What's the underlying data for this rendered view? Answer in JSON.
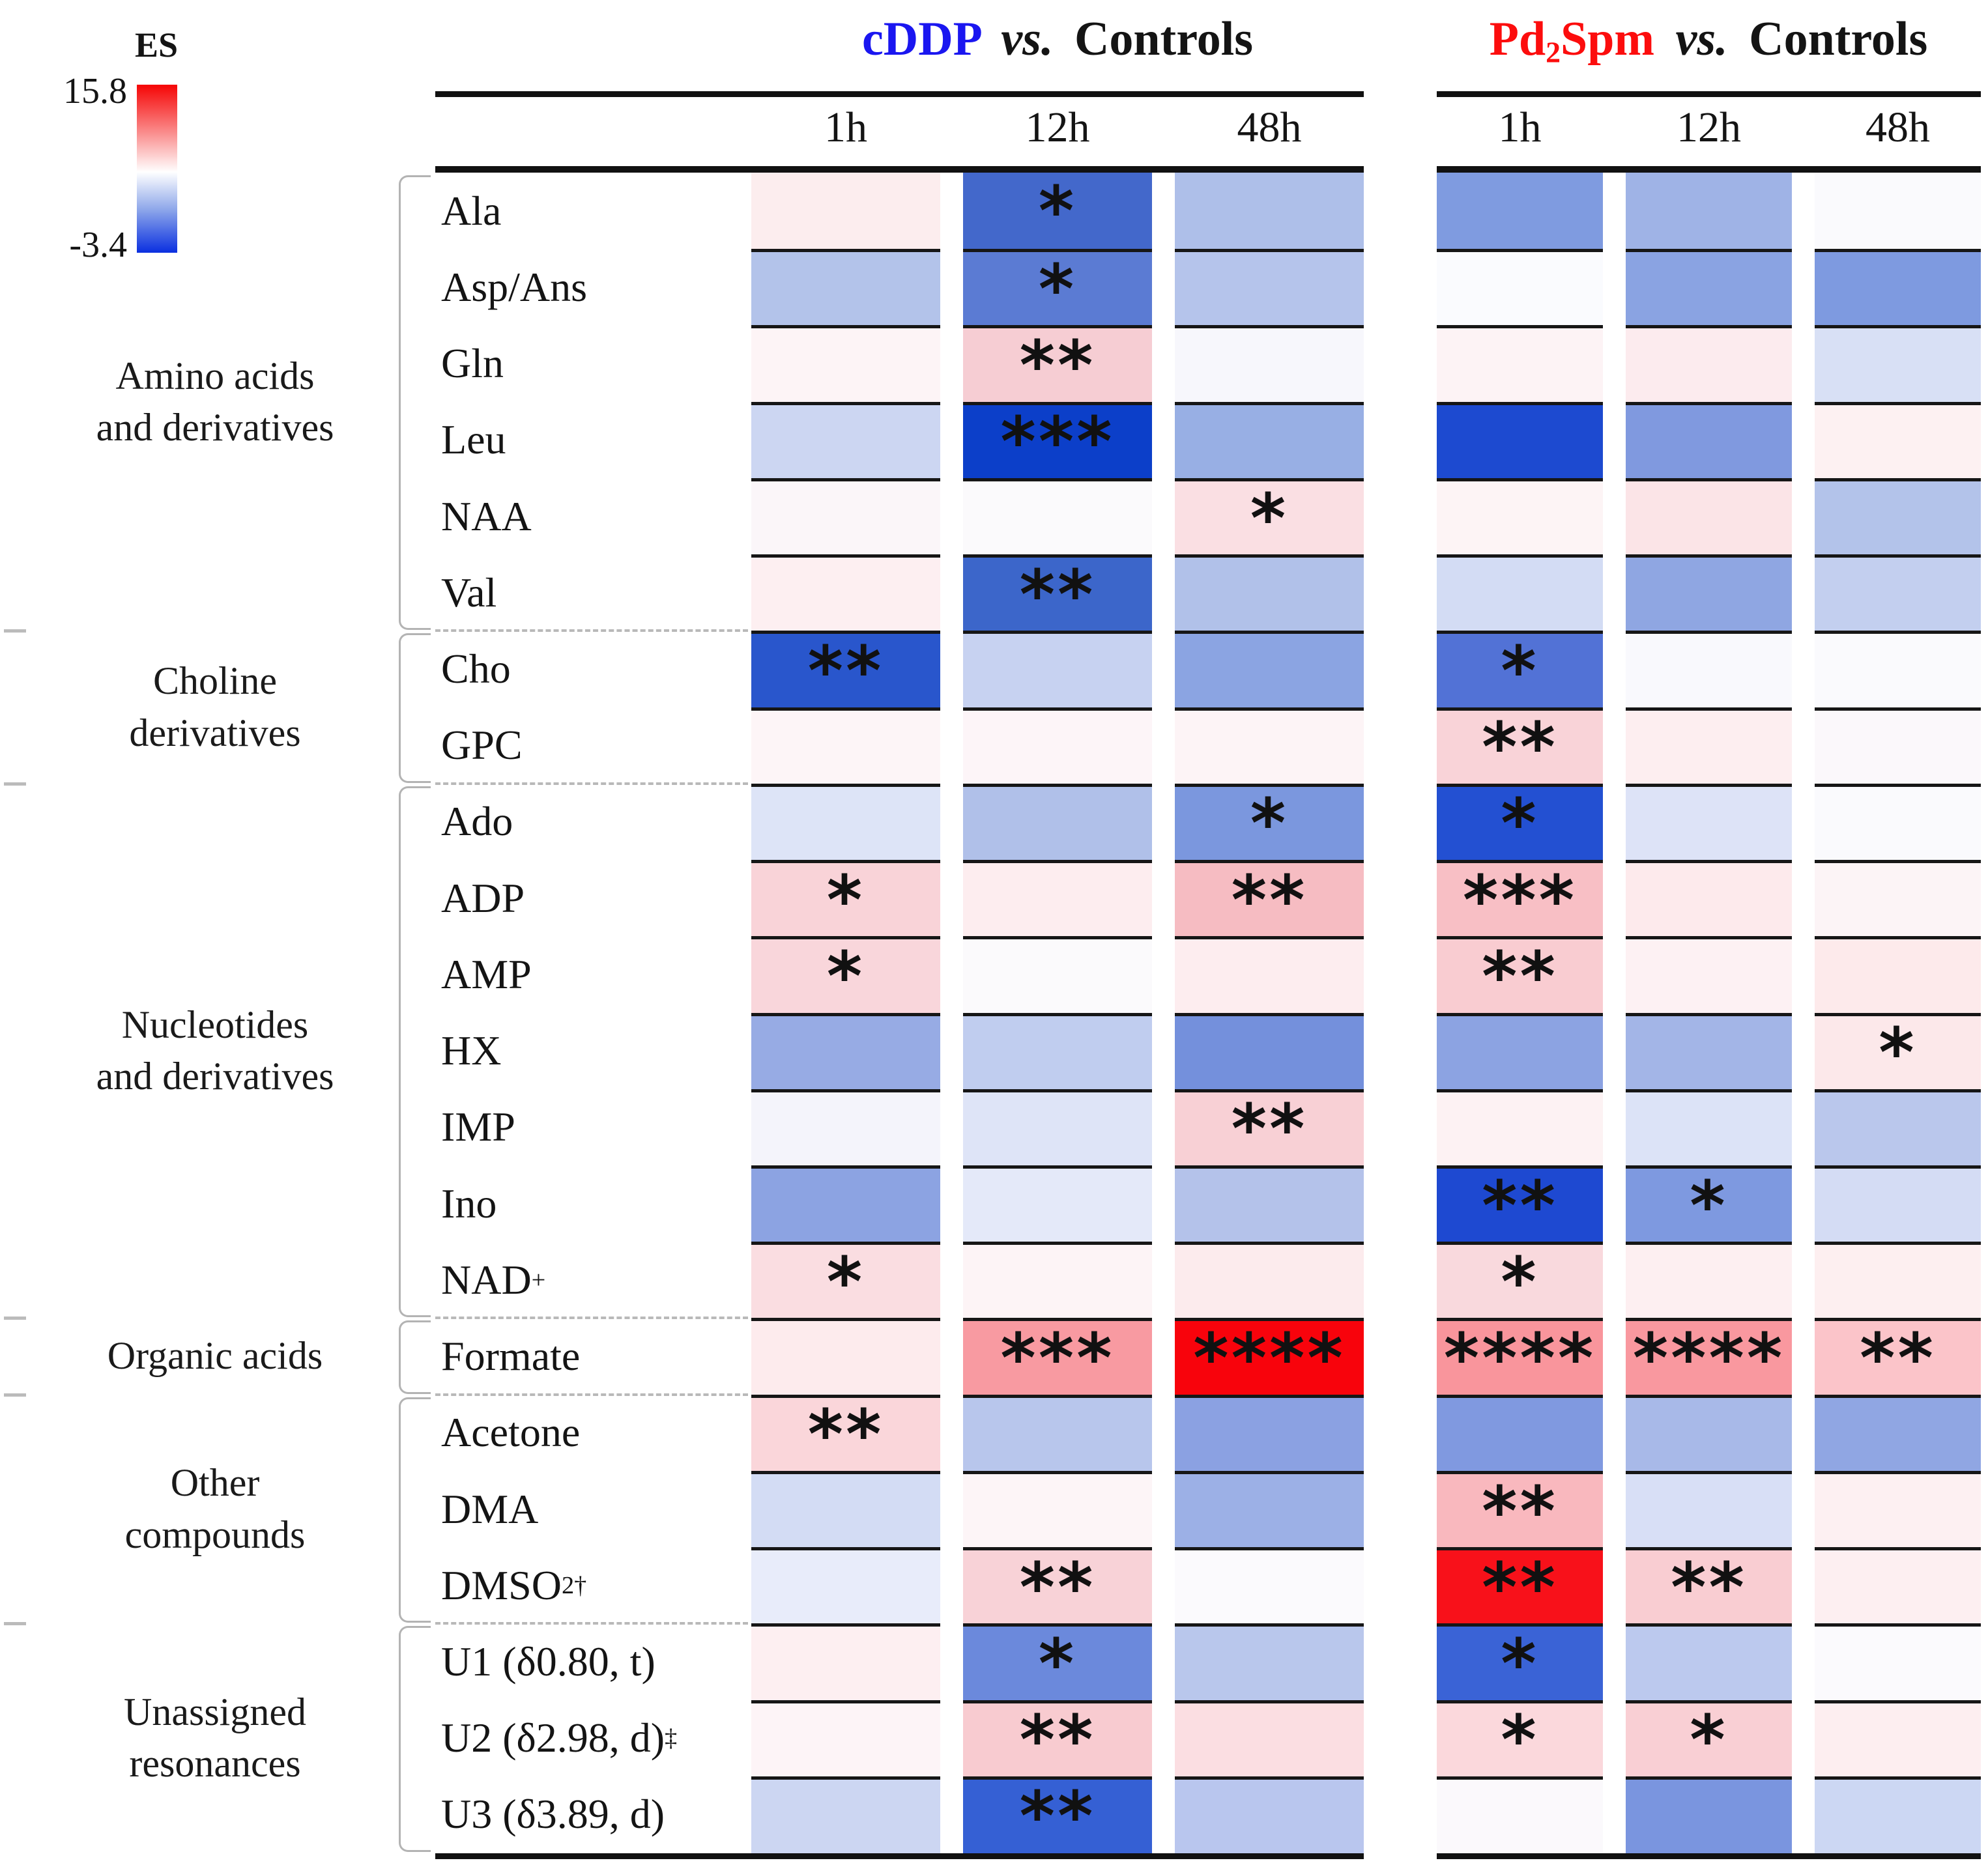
{
  "legend": {
    "title": "ES",
    "max_label": "15.8",
    "min_label": "-3.4",
    "gradient": [
      "#f50505",
      "#fa8a8a",
      "#ffffff",
      "#8fa8ea",
      "#0a2fe0"
    ]
  },
  "header": {
    "groups": [
      {
        "drug_segments": [
          {
            "t": "cDDP"
          }
        ],
        "drug_color": "#1a16f0",
        "vs_label": "vs.",
        "controls_label": "Controls",
        "timepoints": [
          "1h",
          "12h",
          "48h"
        ]
      },
      {
        "drug_segments": [
          {
            "t": "Pd"
          },
          {
            "sub": "2"
          },
          {
            "t": "Spm"
          }
        ],
        "drug_color": "#fc0d0d",
        "vs_label": "vs.",
        "controls_label": "Controls",
        "timepoints": [
          "1h",
          "12h",
          "48h"
        ]
      }
    ]
  },
  "categories": [
    {
      "label": "Amino acids\nand derivatives",
      "row_start": 0,
      "row_end": 5
    },
    {
      "label": "Choline\nderivatives",
      "row_start": 6,
      "row_end": 7
    },
    {
      "label": "Nucleotides\nand derivatives",
      "row_start": 8,
      "row_end": 14
    },
    {
      "label": "Organic acids",
      "row_start": 15,
      "row_end": 15
    },
    {
      "label": "Other\ncompounds",
      "row_start": 16,
      "row_end": 18
    },
    {
      "label": "Unassigned\nresonances",
      "row_start": 19,
      "row_end": 21
    }
  ],
  "chart_data": {
    "type": "heatmap",
    "legend": {
      "label": "ES",
      "max": 15.8,
      "min": -3.4,
      "colormap": "blue-white-red"
    },
    "column_groups": [
      "cDDP vs. Controls",
      "Pd2Spm vs. Controls"
    ],
    "columns": [
      "cDDP 1h",
      "cDDP 12h",
      "cDDP 48h",
      "Pd2Spm 1h",
      "Pd2Spm 12h",
      "Pd2Spm 48h"
    ],
    "rows": [
      {
        "metabolite": "Ala",
        "category": "Amino acids and derivatives",
        "label_segments": [
          {
            "t": "Ala"
          }
        ],
        "cell_colors": [
          "#fcedee",
          "#4368cb",
          "#aebfe9",
          "#7f9be0",
          "#9fb3e6",
          "#fafafd"
        ],
        "significance": [
          "",
          "*",
          "",
          "",
          "",
          ""
        ]
      },
      {
        "metabolite": "Asp/Ans",
        "category": "Amino acids and derivatives",
        "label_segments": [
          {
            "t": "Asp/Ans"
          }
        ],
        "cell_colors": [
          "#b3c3ea",
          "#5b7bd3",
          "#b5c4eb",
          "#fafbfe",
          "#8aa3e2",
          "#7e9ae0"
        ],
        "significance": [
          "",
          "*",
          "",
          "",
          "",
          ""
        ]
      },
      {
        "metabolite": "Gln",
        "category": "Amino acids and derivatives",
        "label_segments": [
          {
            "t": "Gln"
          }
        ],
        "cell_colors": [
          "#fdf4f6",
          "#f6cdd3",
          "#f7f7fc",
          "#fdf3f5",
          "#fcebee",
          "#d8e0f5"
        ],
        "significance": [
          "",
          "**",
          "",
          "",
          "",
          ""
        ]
      },
      {
        "metabolite": "Leu",
        "category": "Amino acids and derivatives",
        "label_segments": [
          {
            "t": "Leu"
          }
        ],
        "cell_colors": [
          "#ccd6f2",
          "#0c3fc9",
          "#98afe4",
          "#1d4ad0",
          "#8099df",
          "#fdf1f2"
        ],
        "significance": [
          "",
          "***",
          "",
          "",
          "",
          ""
        ]
      },
      {
        "metabolite": "NAA",
        "category": "Amino acids and derivatives",
        "label_segments": [
          {
            "t": "NAA"
          }
        ],
        "cell_colors": [
          "#fbf6f9",
          "#fbfafc",
          "#fadfe3",
          "#fdf4f5",
          "#fbe4e7",
          "#b3c3ea"
        ],
        "significance": [
          "",
          "",
          "*",
          "",
          "",
          ""
        ]
      },
      {
        "metabolite": "Val",
        "category": "Amino acids and derivatives",
        "label_segments": [
          {
            "t": "Val"
          }
        ],
        "cell_colors": [
          "#fdeff1",
          "#3c66ca",
          "#b1c1e9",
          "#d3dcf4",
          "#8fa6e2",
          "#c3cfef"
        ],
        "significance": [
          "",
          "**",
          "",
          "",
          "",
          ""
        ]
      },
      {
        "metabolite": "Cho",
        "category": "Choline derivatives",
        "label_segments": [
          {
            "t": "Cho"
          }
        ],
        "cell_colors": [
          "#2956cc",
          "#c7d2f1",
          "#8ba4e2",
          "#5272d6",
          "#f9f9fd",
          "#fafafd"
        ],
        "significance": [
          "**",
          "",
          "",
          "*",
          "",
          ""
        ]
      },
      {
        "metabolite": "GPC",
        "category": "Choline derivatives",
        "label_segments": [
          {
            "t": "GPC"
          }
        ],
        "cell_colors": [
          "#fdf5f7",
          "#fdf5f8",
          "#fdf4f6",
          "#f9d3d8",
          "#fdeef0",
          "#fbf8fb"
        ],
        "significance": [
          "",
          "",
          "",
          "**",
          "",
          ""
        ]
      },
      {
        "metabolite": "Ado",
        "category": "Nucleotides and derivatives",
        "label_segments": [
          {
            "t": "Ado"
          }
        ],
        "cell_colors": [
          "#dde4f7",
          "#b0c0e9",
          "#7b97de",
          "#2350d2",
          "#dde3f7",
          "#fafafd"
        ],
        "significance": [
          "",
          "",
          "*",
          "*",
          "",
          ""
        ]
      },
      {
        "metabolite": "ADP",
        "category": "Nucleotides and derivatives",
        "label_segments": [
          {
            "t": "ADP"
          }
        ],
        "cell_colors": [
          "#f9d3d8",
          "#fdedef",
          "#f6bcc2",
          "#f8bfc5",
          "#fdeaec",
          "#fcf4f6"
        ],
        "significance": [
          "*",
          "",
          "**",
          "***",
          "",
          ""
        ]
      },
      {
        "metabolite": "AMP",
        "category": "Nucleotides and derivatives",
        "label_segments": [
          {
            "t": "AMP"
          }
        ],
        "cell_colors": [
          "#f9d6db",
          "#fbfafc",
          "#fdedef",
          "#f9ccd1",
          "#fdf1f3",
          "#fdeaeb"
        ],
        "significance": [
          "*",
          "",
          "",
          "**",
          "",
          ""
        ]
      },
      {
        "metabolite": "HX",
        "category": "Nucleotides and derivatives",
        "label_segments": [
          {
            "t": "HX"
          }
        ],
        "cell_colors": [
          "#97abe4",
          "#c0cdef",
          "#7490dc",
          "#8ca3e2",
          "#a3b5e7",
          "#fce8ea"
        ],
        "significance": [
          "",
          "",
          "",
          "",
          "",
          "*"
        ]
      },
      {
        "metabolite": "IMP",
        "category": "Nucleotides and derivatives",
        "label_segments": [
          {
            "t": "IMP"
          }
        ],
        "cell_colors": [
          "#f4f4fb",
          "#dee4f7",
          "#f8d0d5",
          "#fdf2f3",
          "#dce3f7",
          "#bac7ec"
        ],
        "significance": [
          "",
          "",
          "**",
          "",
          "",
          ""
        ]
      },
      {
        "metabolite": "Ino",
        "category": "Nucleotides and derivatives",
        "label_segments": [
          {
            "t": "Ino"
          }
        ],
        "cell_colors": [
          "#8ca3e2",
          "#e4e9f9",
          "#b4c2ea",
          "#1e49d1",
          "#7e99e0",
          "#d4dcf4"
        ],
        "significance": [
          "",
          "",
          "",
          "**",
          "*",
          ""
        ]
      },
      {
        "metabolite": "NAD+",
        "category": "Nucleotides and derivatives",
        "label_segments": [
          {
            "t": "NAD"
          },
          {
            "sup": "+"
          }
        ],
        "cell_colors": [
          "#fadde1",
          "#fdf4f6",
          "#fcebed",
          "#f9d9dd",
          "#fdeff1",
          "#fdeff0"
        ],
        "significance": [
          "*",
          "",
          "",
          "*",
          "",
          ""
        ]
      },
      {
        "metabolite": "Formate",
        "category": "Organic acids",
        "label_segments": [
          {
            "t": "Formate"
          }
        ],
        "cell_colors": [
          "#fdebed",
          "#f89aa1",
          "#f8030c",
          "#f9959c",
          "#f9989f",
          "#fbc4c9"
        ],
        "significance": [
          "",
          "***",
          "****",
          "****",
          "****",
          "**"
        ]
      },
      {
        "metabolite": "Acetone",
        "category": "Other compounds",
        "label_segments": [
          {
            "t": "Acetone"
          }
        ],
        "cell_colors": [
          "#fad6da",
          "#b8c6ec",
          "#8ba1e2",
          "#8099e0",
          "#a8b9e8",
          "#90a6e3"
        ],
        "significance": [
          "**",
          "",
          "",
          "",
          "",
          ""
        ]
      },
      {
        "metabolite": "DMA",
        "category": "Other compounds",
        "label_segments": [
          {
            "t": "DMA"
          }
        ],
        "cell_colors": [
          "#d3dcf4",
          "#fdf5f7",
          "#9cb0e6",
          "#f9b8be",
          "#d8dff6",
          "#fdf0f2"
        ],
        "significance": [
          "",
          "",
          "",
          "**",
          "",
          ""
        ]
      },
      {
        "metabolite": "DMSO2",
        "category": "Other compounds",
        "label_segments": [
          {
            "t": "DMSO"
          },
          {
            "sub": "2"
          },
          {
            "t": " "
          },
          {
            "sup": "†"
          }
        ],
        "cell_colors": [
          "#e8ecfa",
          "#f8d2d7",
          "#fbfafd",
          "#f8111a",
          "#f9cdd2",
          "#fdeff1"
        ],
        "significance": [
          "",
          "**",
          "",
          "**",
          "**",
          ""
        ]
      },
      {
        "metabolite": "U1 (d0.80, t)",
        "category": "Unassigned resonances",
        "label_segments": [
          {
            "t": "U1 (δ0.80, t)"
          }
        ],
        "cell_colors": [
          "#fdeff1",
          "#6b89dc",
          "#b9c7ec",
          "#3a63d6",
          "#bcc9ee",
          "#fbfafd"
        ],
        "significance": [
          "",
          "*",
          "",
          "*",
          "",
          ""
        ]
      },
      {
        "metabolite": "U2 (d2.98, d)",
        "category": "Unassigned resonances",
        "label_segments": [
          {
            "t": "U2 (δ2.98, d)"
          },
          {
            "sup": "‡"
          }
        ],
        "cell_colors": [
          "#fdf4f7",
          "#f8cbd0",
          "#fbdee2",
          "#fbd8dc",
          "#f9cfd4",
          "#fdeef0"
        ],
        "significance": [
          "",
          "**",
          "",
          "*",
          "*",
          ""
        ]
      },
      {
        "metabolite": "U3 (d3.89, d)",
        "category": "Unassigned resonances",
        "label_segments": [
          {
            "t": "U3 (δ3.89, d)"
          }
        ],
        "cell_colors": [
          "#ccd6f2",
          "#3560d4",
          "#b9c6ee",
          "#fbf9fc",
          "#7a95df",
          "#ccd7f3"
        ],
        "significance": [
          "",
          "**",
          "",
          "",
          "",
          ""
        ]
      }
    ]
  }
}
